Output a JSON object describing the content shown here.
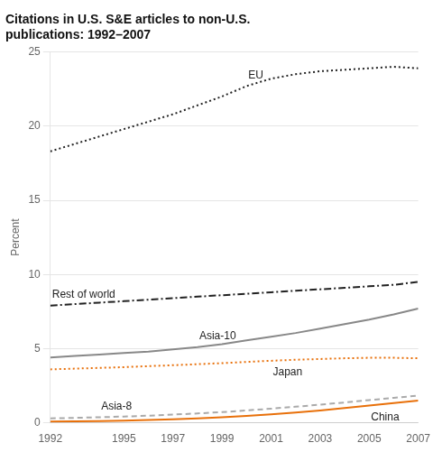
{
  "chart_data": {
    "type": "line",
    "title": [
      "Citations in U.S. S&E articles to non-U.S.",
      "publications: 1992–2007"
    ],
    "ylabel": "Percent",
    "x": [
      1992,
      1993,
      1994,
      1995,
      1996,
      1997,
      1998,
      1999,
      2000,
      2001,
      2002,
      2003,
      2004,
      2005,
      2006,
      2007
    ],
    "series": [
      {
        "name": "EU",
        "color": "#222222",
        "line_style": "dotted",
        "values": [
          18.3,
          18.8,
          19.3,
          19.8,
          20.3,
          20.8,
          21.4,
          22.0,
          22.7,
          23.2,
          23.5,
          23.7,
          23.8,
          23.9,
          24.0,
          23.9
        ]
      },
      {
        "name": "Rest of world",
        "color": "#222222",
        "line_style": "dashdot",
        "values": [
          7.9,
          8.0,
          8.1,
          8.2,
          8.3,
          8.4,
          8.5,
          8.6,
          8.7,
          8.8,
          8.9,
          9.0,
          9.1,
          9.2,
          9.3,
          9.5
        ]
      },
      {
        "name": "Asia-10",
        "color": "#888888",
        "line_style": "solid",
        "values": [
          4.4,
          4.5,
          4.6,
          4.7,
          4.8,
          4.95,
          5.1,
          5.3,
          5.55,
          5.8,
          6.05,
          6.35,
          6.65,
          6.95,
          7.3,
          7.7
        ]
      },
      {
        "name": "Japan",
        "color": "#e8700a",
        "line_style": "dotted",
        "values": [
          3.6,
          3.65,
          3.7,
          3.75,
          3.82,
          3.88,
          3.95,
          4.02,
          4.1,
          4.18,
          4.25,
          4.3,
          4.35,
          4.38,
          4.38,
          4.35
        ]
      },
      {
        "name": "Asia-8",
        "color": "#aaaaaa",
        "line_style": "dashed",
        "values": [
          0.3,
          0.33,
          0.37,
          0.42,
          0.48,
          0.55,
          0.63,
          0.72,
          0.83,
          0.95,
          1.08,
          1.22,
          1.37,
          1.53,
          1.68,
          1.83
        ]
      },
      {
        "name": "China",
        "color": "#e8700a",
        "line_style": "solid",
        "values": [
          0.08,
          0.1,
          0.12,
          0.15,
          0.19,
          0.24,
          0.3,
          0.37,
          0.46,
          0.57,
          0.69,
          0.83,
          0.99,
          1.16,
          1.33,
          1.5
        ]
      }
    ],
    "xlim": [
      1992,
      2007
    ],
    "xticks": [
      1992,
      1995,
      1997,
      1999,
      2001,
      2003,
      2005,
      2007
    ],
    "ylim": [
      0,
      25
    ],
    "yticks": [
      0,
      5,
      10,
      15,
      20,
      25
    ],
    "grid": "y"
  }
}
